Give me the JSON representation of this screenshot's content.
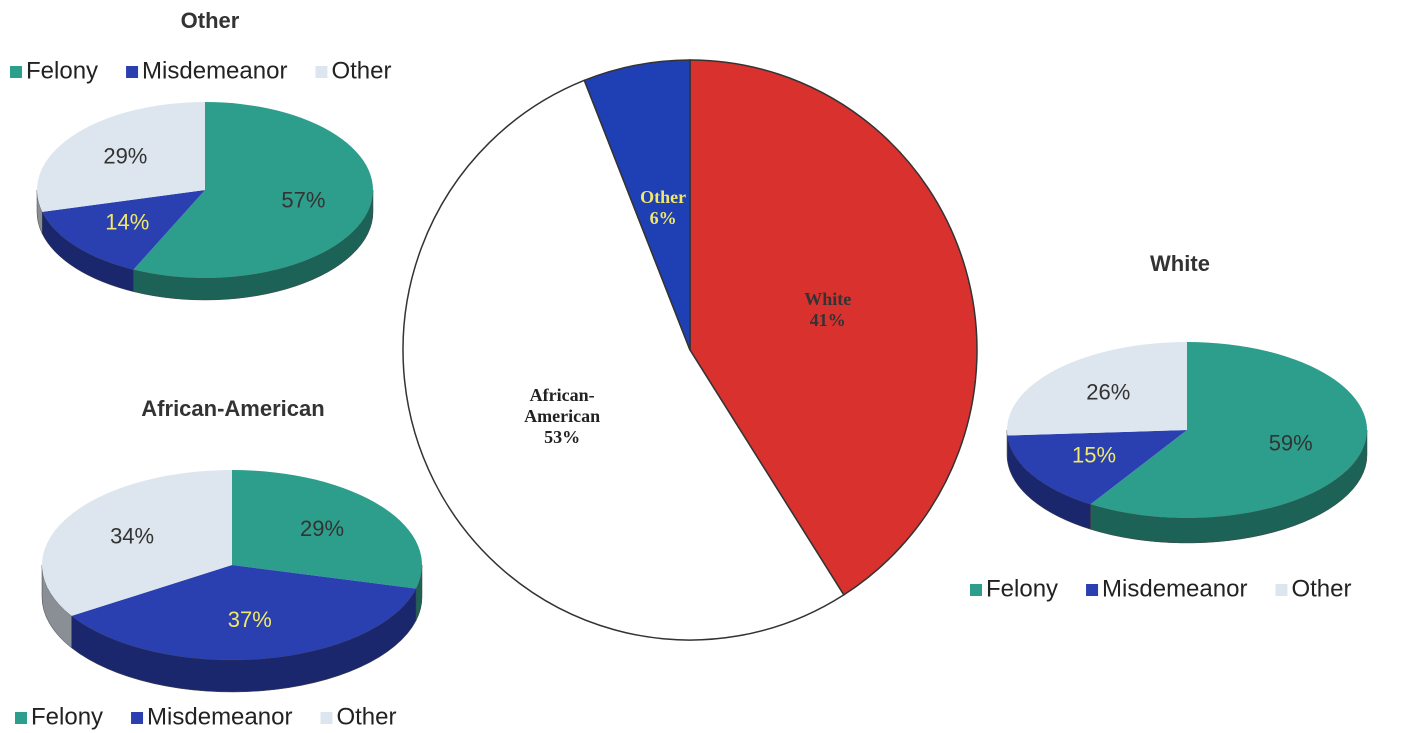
{
  "chart_data": [
    {
      "type": "pie",
      "title": "Other",
      "categories": [
        "Felony",
        "Misdemeanor",
        "Other"
      ],
      "values": [
        57,
        14,
        29
      ],
      "value_labels": [
        "57%",
        "14%",
        "29%"
      ],
      "colors": [
        "#2e9e8c",
        "#2a3fb0",
        "#dde6ee"
      ],
      "label_colors": [
        "#333333",
        "#f0e868",
        "#333333"
      ],
      "legend": "top",
      "3d": true
    },
    {
      "type": "pie",
      "categories": [
        "White",
        "African-American",
        "Other"
      ],
      "values": [
        41,
        53,
        6
      ],
      "value_labels": [
        "41%",
        "53%",
        "6%"
      ],
      "colors": [
        "#d8312e",
        "#ffffff",
        "#1f3fb5"
      ],
      "label_colors": [
        "#333333",
        "#222222",
        "#f0e868"
      ],
      "3d": false
    },
    {
      "type": "pie",
      "title": "African-American",
      "categories": [
        "Felony",
        "Misdemeanor",
        "Other"
      ],
      "values": [
        29,
        37,
        34
      ],
      "value_labels": [
        "29%",
        "37%",
        "34%"
      ],
      "colors": [
        "#2e9e8c",
        "#2a3fb0",
        "#dde6ee"
      ],
      "label_colors": [
        "#333333",
        "#f0e868",
        "#333333"
      ],
      "legend": "bottom",
      "3d": true
    },
    {
      "type": "pie",
      "title": "White",
      "categories": [
        "Felony",
        "Misdemeanor",
        "Other"
      ],
      "values": [
        59,
        15,
        26
      ],
      "value_labels": [
        "59%",
        "15%",
        "26%"
      ],
      "colors": [
        "#2e9e8c",
        "#2a3fb0",
        "#dde6ee"
      ],
      "label_colors": [
        "#333333",
        "#f0e868",
        "#333333"
      ],
      "legend": "bottom",
      "3d": true
    }
  ]
}
